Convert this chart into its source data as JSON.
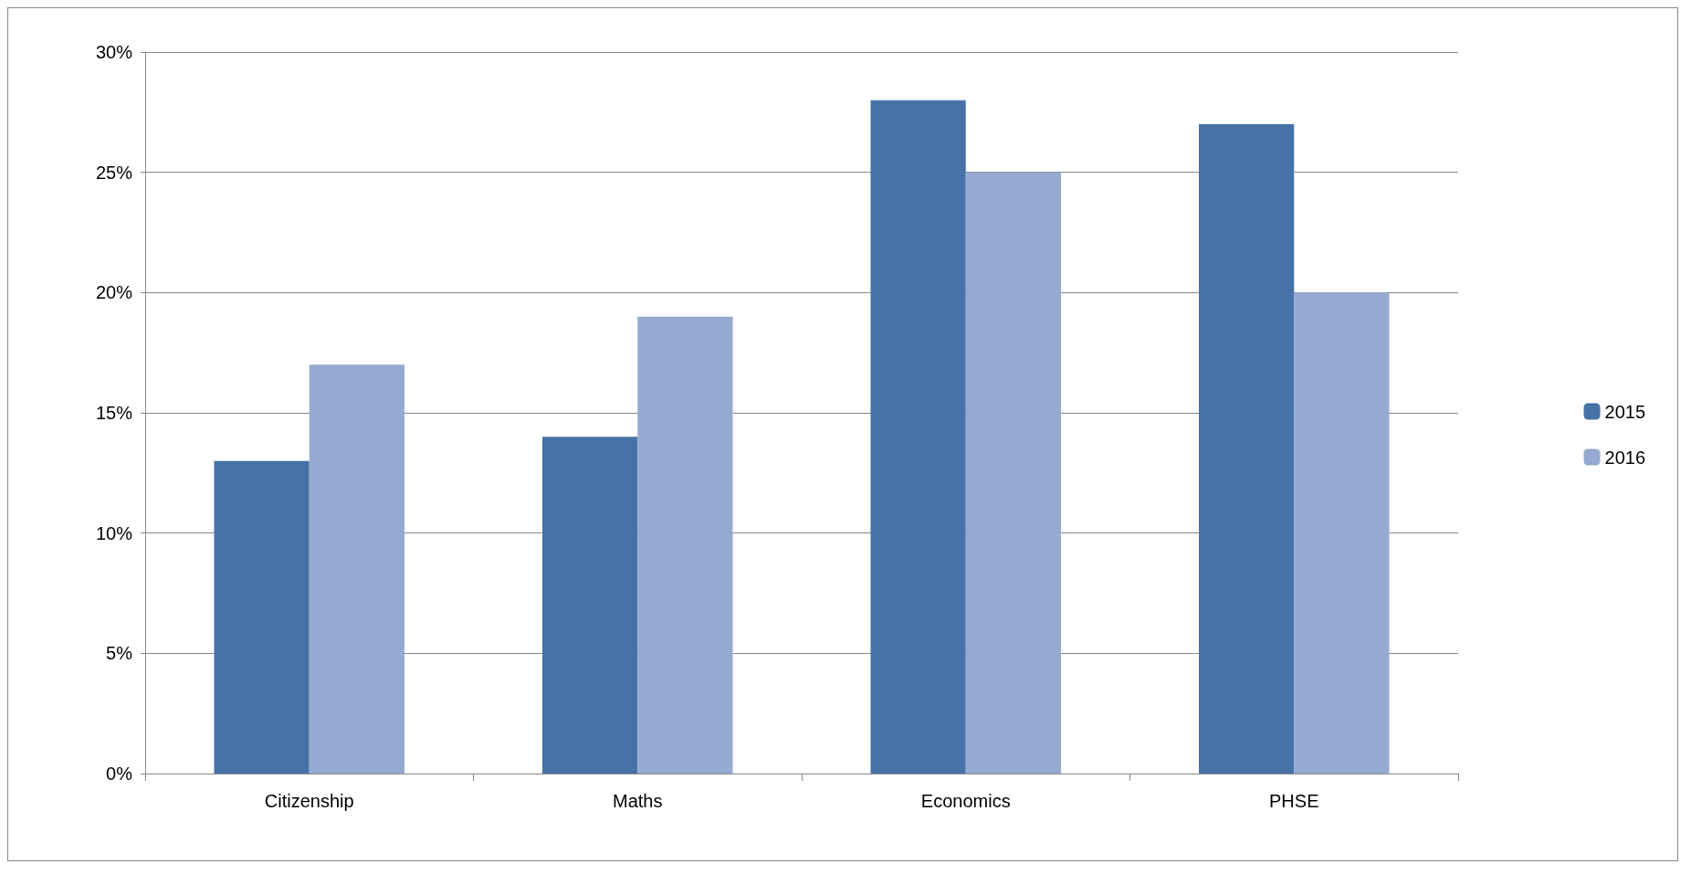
{
  "chart_data": {
    "type": "bar",
    "categories": [
      "Citizenship",
      "Maths",
      "Economics",
      "PHSE"
    ],
    "series": [
      {
        "name": "2015",
        "color": "#4672a8",
        "values": [
          13,
          14,
          28,
          27
        ]
      },
      {
        "name": "2016",
        "color": "#95aad0",
        "values": [
          17,
          19,
          25,
          20
        ]
      }
    ],
    "ylim": [
      0,
      30
    ],
    "yticks": [
      {
        "value": 0,
        "label": "0%"
      },
      {
        "value": 5,
        "label": "5%"
      },
      {
        "value": 10,
        "label": "10%"
      },
      {
        "value": 15,
        "label": "15%"
      },
      {
        "value": 20,
        "label": "20%"
      },
      {
        "value": 25,
        "label": "25%"
      },
      {
        "value": 30,
        "label": "30%"
      }
    ],
    "grid": "y",
    "legend": "right"
  }
}
